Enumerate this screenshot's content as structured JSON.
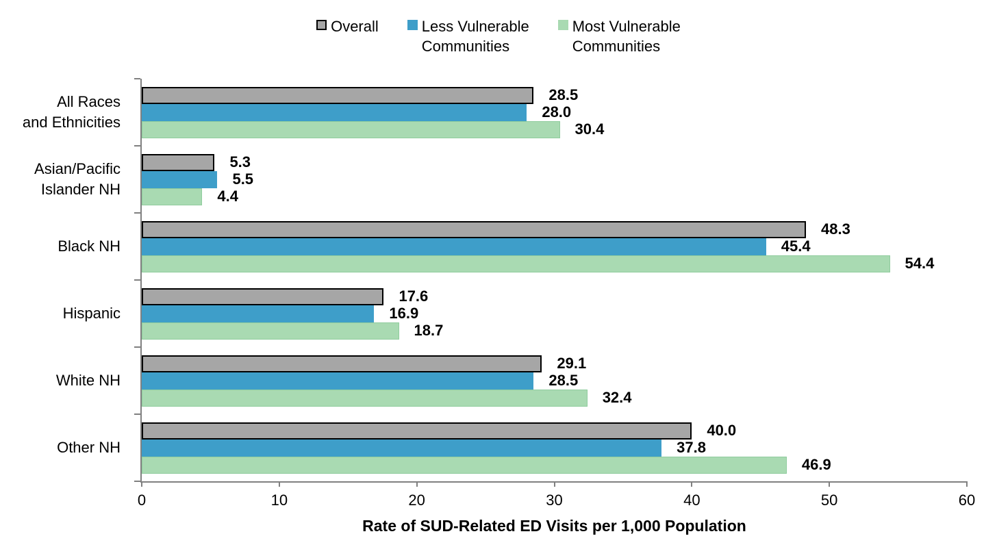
{
  "legend": {
    "items": [
      {
        "name": "Overall",
        "lines": [
          "Overall"
        ],
        "color": "#A6A6A6",
        "border_color": "#000000"
      },
      {
        "name": "Less Vulnerable Communities",
        "lines": [
          "Less Vulnerable",
          "Communities"
        ],
        "color": "#3E9EC9",
        "border_color": "#3E9EC9"
      },
      {
        "name": "Most Vulnerable Communities",
        "lines": [
          "Most Vulnerable",
          "Communities"
        ],
        "color": "#A9DAB2",
        "border_color": "#A9DAB2"
      }
    ]
  },
  "chart_data": {
    "type": "bar",
    "orientation": "horizontal",
    "title": "",
    "xlabel": "Rate of SUD-Related ED Visits per 1,000 Population",
    "xlim": [
      0,
      60
    ],
    "xticks": [
      0,
      10,
      20,
      30,
      40,
      50,
      60
    ],
    "grid": false,
    "legend_position": "top-center",
    "categories": [
      "All Races and Ethnicities",
      "Asian/Pacific Islander NH",
      "Black NH",
      "Hispanic",
      "White NH",
      "Other NH"
    ],
    "category_label_lines": [
      [
        "All Races",
        "and Ethnicities"
      ],
      [
        "Asian/Pacific",
        "Islander NH"
      ],
      [
        "Black NH"
      ],
      [
        "Hispanic"
      ],
      [
        "White NH"
      ],
      [
        "Other NH"
      ]
    ],
    "series": [
      {
        "name": "Overall",
        "color": "#A6A6A6",
        "border_color": "#000000",
        "values": [
          28.5,
          5.3,
          48.3,
          17.6,
          29.1,
          40.0
        ],
        "labels": [
          "28.5",
          "5.3",
          "48.3",
          "17.6",
          "29.1",
          "40.0"
        ]
      },
      {
        "name": "Less Vulnerable Communities",
        "color": "#3E9EC9",
        "border_color": null,
        "values": [
          28.0,
          5.5,
          45.4,
          16.9,
          28.5,
          37.8
        ],
        "labels": [
          "28.0",
          "5.5",
          "45.4",
          "16.9",
          "28.5",
          "37.8"
        ]
      },
      {
        "name": "Most Vulnerable Communities",
        "color": "#A9DAB2",
        "border_color": "#8FCC9D",
        "values": [
          30.4,
          4.4,
          54.4,
          18.7,
          32.4,
          46.9
        ],
        "labels": [
          "30.4",
          "4.4",
          "54.4",
          "18.7",
          "32.4",
          "46.9"
        ]
      }
    ],
    "axis_color": "#808080",
    "text_color": "#000000"
  }
}
